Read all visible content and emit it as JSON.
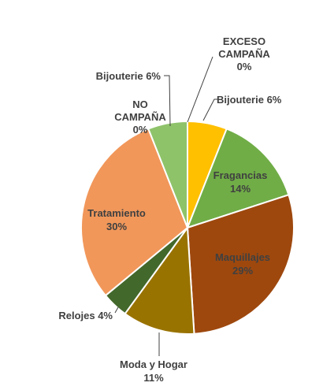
{
  "chart_data": {
    "type": "pie",
    "title": "",
    "start_angle_deg": 0,
    "direction": "clockwise",
    "slices": [
      {
        "label": "Bijouterie",
        "percent_label": "6%",
        "value": 6,
        "color": "#FFC000"
      },
      {
        "label": "Fragancias",
        "percent_label": "14%",
        "value": 14,
        "color": "#70AD47"
      },
      {
        "label": "Maquillajes",
        "percent_label": "29%",
        "value": 29,
        "color": "#9E480E"
      },
      {
        "label": "Moda y Hogar",
        "percent_label": "11%",
        "value": 11,
        "color": "#997300"
      },
      {
        "label": "Relojes",
        "percent_label": "4%",
        "value": 4,
        "color": "#43682B"
      },
      {
        "label": "Tratamiento",
        "percent_label": "30%",
        "value": 30,
        "color": "#F1975A"
      },
      {
        "label": "Bijouterie",
        "percent_label": "6%",
        "value": 6,
        "color": "#8FC36A"
      },
      {
        "label": "NO CAMPAÑA",
        "percent_label": "0%",
        "value": 0,
        "color": "#A5A5A5"
      },
      {
        "label": "EXCESO CAMPAÑA",
        "percent_label": "0%",
        "value": 0,
        "color": "#5B9BD5"
      }
    ]
  }
}
